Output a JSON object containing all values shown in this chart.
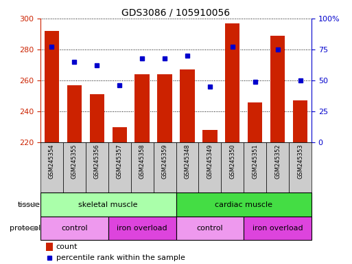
{
  "title": "GDS3086 / 105910056",
  "samples": [
    "GSM245354",
    "GSM245355",
    "GSM245356",
    "GSM245357",
    "GSM245358",
    "GSM245359",
    "GSM245348",
    "GSM245349",
    "GSM245350",
    "GSM245351",
    "GSM245352",
    "GSM245353"
  ],
  "bar_values": [
    292,
    257,
    251,
    230,
    264,
    264,
    267,
    228,
    297,
    246,
    289,
    247
  ],
  "percentile_values": [
    77,
    65,
    62,
    46,
    68,
    68,
    70,
    45,
    77,
    49,
    75,
    50
  ],
  "ylim_left": [
    220,
    300
  ],
  "ylim_right": [
    0,
    100
  ],
  "yticks_left": [
    220,
    240,
    260,
    280,
    300
  ],
  "yticks_right": [
    0,
    25,
    50,
    75,
    100
  ],
  "bar_color": "#cc2200",
  "point_color": "#0000cc",
  "tissue_labels": [
    {
      "label": "skeletal muscle",
      "start": 0,
      "end": 5,
      "color": "#aaffaa"
    },
    {
      "label": "cardiac muscle",
      "start": 6,
      "end": 11,
      "color": "#44dd44"
    }
  ],
  "protocol_labels": [
    {
      "label": "control",
      "start": 0,
      "end": 2,
      "color": "#ee99ee"
    },
    {
      "label": "iron overload",
      "start": 3,
      "end": 5,
      "color": "#dd44dd"
    },
    {
      "label": "control",
      "start": 6,
      "end": 8,
      "color": "#ee99ee"
    },
    {
      "label": "iron overload",
      "start": 9,
      "end": 11,
      "color": "#dd44dd"
    }
  ],
  "legend_count_label": "count",
  "legend_percentile_label": "percentile rank within the sample",
  "tick_label_color_left": "#cc2200",
  "tick_label_color_right": "#0000cc",
  "xticklabel_bg": "#cccccc",
  "title_fontsize": 10,
  "axis_fontsize": 8,
  "sample_fontsize": 6,
  "legend_fontsize": 8,
  "row_label_fontsize": 8,
  "row_content_fontsize": 8
}
